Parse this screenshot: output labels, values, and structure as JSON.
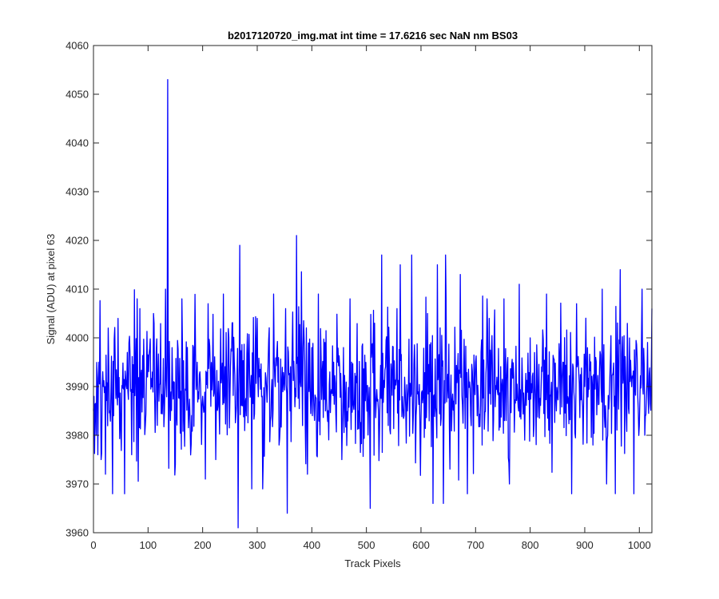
{
  "chart_data": {
    "type": "line",
    "title": "b2017120720_img.mat int time = 17.6216 sec  NaN nm BS03",
    "xlabel": "Track Pixels",
    "ylabel": "Signal (ADU) at pixel 63",
    "xlim": [
      0,
      1023
    ],
    "ylim": [
      3960,
      4060
    ],
    "xticks": [
      0,
      100,
      200,
      300,
      400,
      500,
      600,
      700,
      800,
      900,
      1000
    ],
    "yticks": [
      3960,
      3970,
      3980,
      3990,
      4000,
      4010,
      4020,
      4030,
      4040,
      4050,
      4060
    ],
    "grid": false,
    "legend": "none",
    "series": [
      {
        "color": "#0000ff",
        "x_start": 0,
        "x_step": 1,
        "count": 1024,
        "baseline": 3990,
        "noise_sd": 7,
        "sampled_points": [
          [
            0,
            3985
          ],
          [
            5,
            3980
          ],
          [
            8,
            3976
          ],
          [
            10,
            3995
          ],
          [
            14,
            3975
          ],
          [
            18,
            3990
          ],
          [
            22,
            3972
          ],
          [
            27,
            4002
          ],
          [
            30,
            3985
          ],
          [
            35,
            3968
          ],
          [
            40,
            3994
          ],
          [
            45,
            4004
          ],
          [
            50,
            3982
          ],
          [
            57,
            3968
          ],
          [
            62,
            3997
          ],
          [
            70,
            3976
          ],
          [
            80,
            4008
          ],
          [
            85,
            4006
          ],
          [
            95,
            3982
          ],
          [
            110,
            4005
          ],
          [
            120,
            3987
          ],
          [
            132,
            4010
          ],
          [
            136,
            4053
          ],
          [
            140,
            3988
          ],
          [
            150,
            3974
          ],
          [
            162,
            4008
          ],
          [
            175,
            3985
          ],
          [
            190,
            3995
          ],
          [
            205,
            3971
          ],
          [
            210,
            4007
          ],
          [
            224,
            3975
          ],
          [
            238,
            4009
          ],
          [
            250,
            3988
          ],
          [
            258,
            3995
          ],
          [
            265,
            3961
          ],
          [
            268,
            4019
          ],
          [
            280,
            3984
          ],
          [
            290,
            3969
          ],
          [
            300,
            4004
          ],
          [
            310,
            3969
          ],
          [
            320,
            3995
          ],
          [
            330,
            4009
          ],
          [
            340,
            3978
          ],
          [
            352,
            4006
          ],
          [
            360,
            3985
          ],
          [
            372,
            4021
          ],
          [
            380,
            3990
          ],
          [
            392,
            3972
          ],
          [
            400,
            3998
          ],
          [
            412,
            4009
          ],
          [
            425,
            3985
          ],
          [
            440,
            3995
          ],
          [
            455,
            3975
          ],
          [
            470,
            4008
          ],
          [
            485,
            3985
          ],
          [
            500,
            3990
          ],
          [
            507,
            3965
          ],
          [
            515,
            4003
          ],
          [
            528,
            4017
          ],
          [
            540,
            3982
          ],
          [
            556,
            4006
          ],
          [
            562,
            4015
          ],
          [
            575,
            3985
          ],
          [
            583,
            4017
          ],
          [
            600,
            3983
          ],
          [
            612,
            4005
          ],
          [
            622,
            3966
          ],
          [
            630,
            4015
          ],
          [
            641,
            3966
          ],
          [
            645,
            4017
          ],
          [
            660,
            3987
          ],
          [
            672,
            4013
          ],
          [
            685,
            3968
          ],
          [
            700,
            3995
          ],
          [
            712,
            3978
          ],
          [
            725,
            4004
          ],
          [
            740,
            3989
          ],
          [
            752,
            4008
          ],
          [
            762,
            3970
          ],
          [
            780,
            4011
          ],
          [
            790,
            3979
          ],
          [
            800,
            4000
          ],
          [
            815,
            3988
          ],
          [
            830,
            4009
          ],
          [
            848,
            3985
          ],
          [
            860,
            3995
          ],
          [
            876,
            3968
          ],
          [
            885,
            4007
          ],
          [
            900,
            3990
          ],
          [
            915,
            3978
          ],
          [
            932,
            4010
          ],
          [
            940,
            3970
          ],
          [
            955,
            3988
          ],
          [
            965,
            4014
          ],
          [
            975,
            3992
          ],
          [
            990,
            3968
          ],
          [
            1000,
            3982
          ],
          [
            1005,
            4010
          ],
          [
            1010,
            3980
          ],
          [
            1023,
            4006
          ]
        ]
      }
    ]
  }
}
